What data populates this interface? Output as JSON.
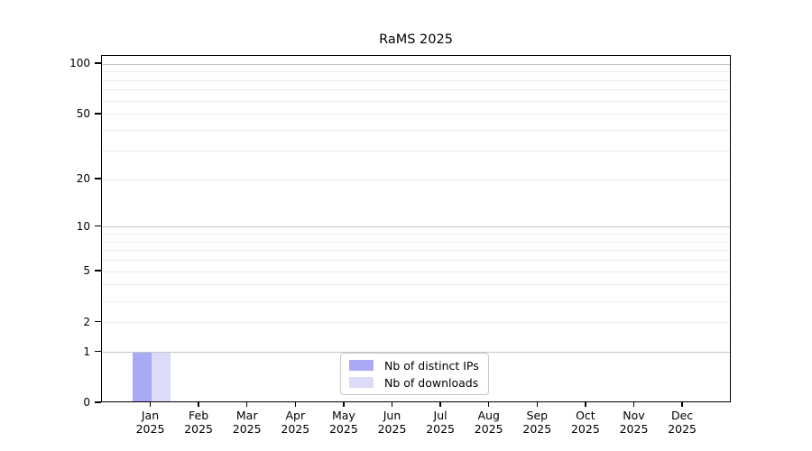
{
  "chart_data": {
    "type": "bar",
    "title": "RaMS 2025",
    "categories": [
      "Jan 2025",
      "Feb 2025",
      "Mar 2025",
      "Apr 2025",
      "May 2025",
      "Jun 2025",
      "Jul 2025",
      "Aug 2025",
      "Sep 2025",
      "Oct 2025",
      "Nov 2025",
      "Dec 2025"
    ],
    "series": [
      {
        "name": "Nb of distinct IPs",
        "color": "#a9a9f6",
        "values": [
          1,
          0,
          0,
          0,
          0,
          0,
          0,
          0,
          0,
          0,
          0,
          0
        ]
      },
      {
        "name": "Nb of downloads",
        "color": "#dcdcf8",
        "values": [
          1,
          0,
          0,
          0,
          0,
          0,
          0,
          0,
          0,
          0,
          0,
          0
        ]
      }
    ],
    "yscale": "log1p",
    "ylim": [
      0,
      112
    ],
    "y_tick_labels": [
      0,
      1,
      2,
      5,
      10,
      20,
      50,
      100
    ],
    "y_major_gridlines": [
      1,
      10,
      100
    ],
    "y_minor_gridlines": [
      2,
      3,
      4,
      5,
      6,
      7,
      8,
      9,
      20,
      30,
      40,
      50,
      60,
      70,
      80,
      90
    ],
    "grid": true,
    "legend": {
      "position": "lower center",
      "items": [
        "Nb of distinct IPs",
        "Nb of downloads"
      ]
    },
    "colors": {
      "background": "#ffffff",
      "axis": "#000000",
      "major_grid": "#c6c6c6",
      "minor_grid": "#ececec"
    }
  }
}
